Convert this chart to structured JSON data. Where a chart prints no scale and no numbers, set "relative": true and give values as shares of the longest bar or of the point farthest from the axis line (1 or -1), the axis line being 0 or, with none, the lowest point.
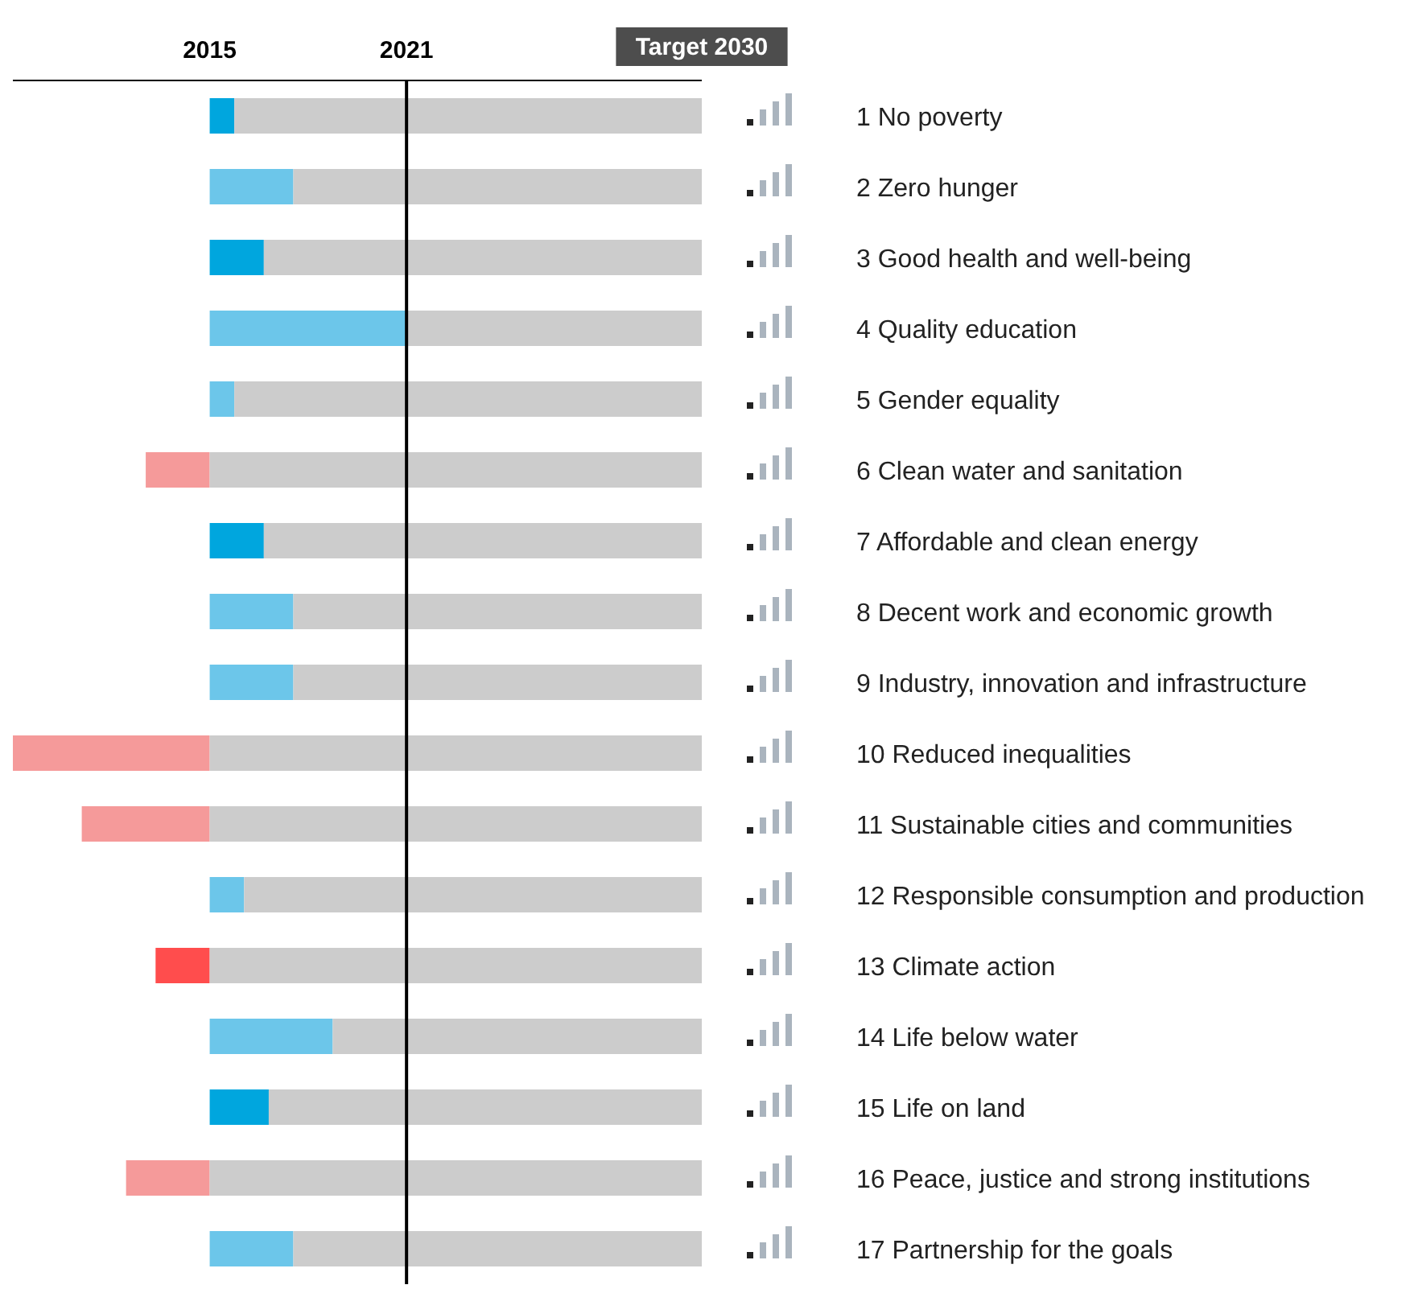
{
  "chart_data": {
    "type": "bar",
    "orientation": "horizontal",
    "stacked": true,
    "relative": true,
    "categories": [
      "1 No poverty",
      "2 Zero hunger",
      "3 Good health and well-being",
      "4 Quality education",
      "5 Gender equality",
      "6 Clean water and sanitation",
      "7 Affordable and clean energy",
      "8 Decent work and economic growth",
      "9 Industry, innovation and infrastructure",
      "10 Reduced inequalities",
      "11 Sustainable cities and communities",
      "12 Responsible consumption and production",
      "13 Climate action",
      "14 Life below water",
      "15 Life on land",
      "16 Peace, justice and strong institutions",
      "17 Partnership for the goals"
    ],
    "series": [
      {
        "color": "#00a6de",
        "values": [
          0.05,
          null,
          0.11,
          null,
          null,
          null,
          0.11,
          null,
          null,
          null,
          null,
          null,
          null,
          null,
          0.12,
          null,
          null
        ]
      },
      {
        "color": "#6cc6ea",
        "values": [
          null,
          0.17,
          null,
          0.4,
          0.05,
          null,
          null,
          0.17,
          0.17,
          null,
          null,
          0.07,
          null,
          0.25,
          null,
          null,
          0.17
        ]
      },
      {
        "color": "#f59a9a",
        "values": [
          null,
          null,
          null,
          null,
          null,
          -0.13,
          null,
          null,
          null,
          -0.4,
          -0.26,
          null,
          null,
          null,
          null,
          -0.17,
          null
        ]
      },
      {
        "color": "#ff4d4d",
        "values": [
          null,
          null,
          null,
          null,
          null,
          null,
          null,
          null,
          null,
          null,
          null,
          null,
          -0.11,
          null,
          null,
          null,
          null
        ]
      },
      {
        "color": "#cccccc",
        "values": [
          0.95,
          0.83,
          0.89,
          0.6,
          0.95,
          1,
          0.89,
          0.83,
          0.83,
          1,
          1,
          0.93,
          1,
          0.75,
          0.88,
          1,
          0.83
        ]
      }
    ],
    "ref_lines": [
      {
        "axis": "x",
        "value": 0.4,
        "color": "#000000"
      }
    ],
    "annotations": [
      "2015",
      "2021",
      "Target 2030"
    ],
    "grid": false,
    "legend": false
  }
}
